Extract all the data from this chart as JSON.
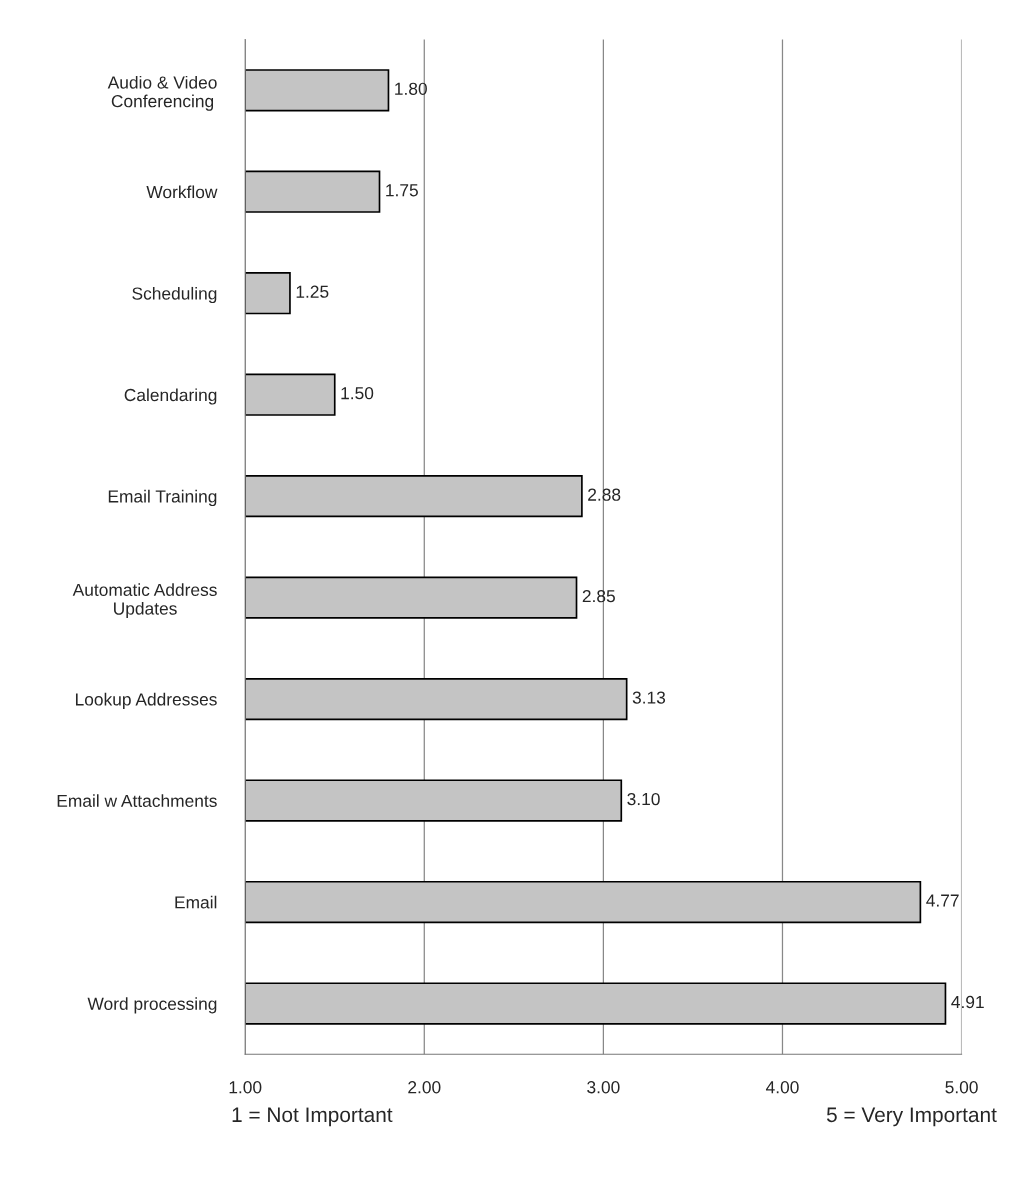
{
  "chart_data": {
    "type": "bar",
    "orientation": "horizontal",
    "categories": [
      "Audio & Video\nConferencing",
      "Workflow",
      "Scheduling",
      "Calendaring",
      "Email Training",
      "Automatic Address\nUpdates",
      "Lookup Addresses",
      "Email w Attachments",
      "Email",
      "Word processing"
    ],
    "values": [
      1.8,
      1.75,
      1.25,
      1.5,
      2.88,
      2.85,
      3.13,
      3.1,
      4.77,
      4.91
    ],
    "value_labels": [
      "1.80",
      "1.75",
      "1.25",
      "1.50",
      "2.88",
      "2.85",
      "3.13",
      "3.10",
      "4.77",
      "4.91"
    ],
    "color": "#c4c4c4",
    "xlim": [
      1,
      5
    ],
    "xticks": [
      {
        "value": 1,
        "label": "1.00"
      },
      {
        "value": 2,
        "label": "2.00"
      },
      {
        "value": 3,
        "label": "3.00"
      },
      {
        "value": 4,
        "label": "4.00"
      },
      {
        "value": 5,
        "label": "5.00"
      }
    ],
    "grid": "x",
    "annotations": [
      "1 = Not Important",
      "5 = Very Important"
    ]
  }
}
